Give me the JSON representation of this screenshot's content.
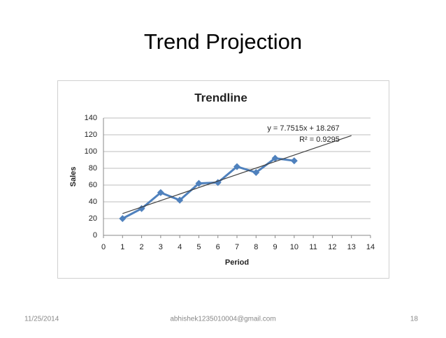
{
  "slide_title": "Trend Projection",
  "chart_data": {
    "type": "line",
    "title": "Trendline",
    "xlabel": "Period",
    "ylabel": "Sales",
    "x": [
      1,
      2,
      3,
      4,
      5,
      6,
      7,
      8,
      9,
      10
    ],
    "series": [
      {
        "color": "#4f81bd",
        "values": [
          20,
          32,
          51,
          42,
          62,
          63,
          82,
          75,
          92,
          89
        ]
      }
    ],
    "trendline": {
      "color": "#404040",
      "x": [
        1,
        13
      ],
      "values": [
        26.02,
        119.04
      ],
      "equation": "y = 7.7515x + 18.267",
      "r_squared": "R² = 0.9295"
    },
    "xlim": [
      0,
      14
    ],
    "xticks": [
      0,
      1,
      2,
      3,
      4,
      5,
      6,
      7,
      8,
      9,
      10,
      11,
      12,
      13,
      14
    ],
    "ylim": [
      0,
      140
    ],
    "yticks": [
      0,
      20,
      40,
      60,
      80,
      100,
      120,
      140
    ],
    "grid": true
  },
  "footer": {
    "date": "11/25/2014",
    "email": "abhishek1235010004@gmail.com",
    "page": "18"
  }
}
